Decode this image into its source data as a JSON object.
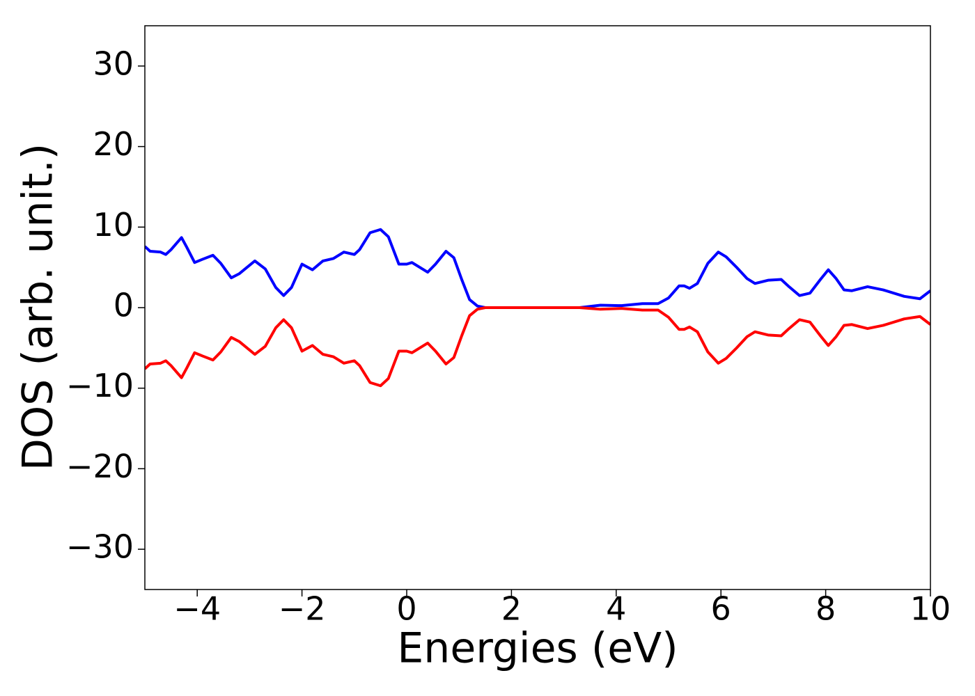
{
  "chart_data": {
    "type": "line",
    "x_label": "Energies (eV)",
    "y_label": "DOS (arb. unit.)",
    "xlim": [
      -5,
      10
    ],
    "xticks": [
      {
        "value": -4,
        "label": "−4"
      },
      {
        "value": -2,
        "label": "−2"
      },
      0,
      2,
      4,
      6,
      8,
      10
    ],
    "ylim": [
      -35,
      35
    ],
    "yticks": [
      {
        "value": -30,
        "label": "−30"
      },
      {
        "value": -20,
        "label": "−20"
      },
      {
        "value": -10,
        "label": "−10"
      },
      0,
      10,
      20,
      30
    ],
    "grid": false,
    "x": [
      -5,
      -4.9,
      -4.7,
      -4.6,
      -4.5,
      -4.3,
      -4.2,
      -4.05,
      -3.9,
      -3.7,
      -3.55,
      -3.35,
      -3.2,
      -2.9,
      -2.7,
      -2.5,
      -2.35,
      -2.2,
      -2.0,
      -1.8,
      -1.6,
      -1.4,
      -1.2,
      -1.0,
      -0.9,
      -0.7,
      -0.5,
      -0.35,
      -0.15,
      0.0,
      0.1,
      0.2,
      0.4,
      0.55,
      0.75,
      0.9,
      1.05,
      1.2,
      1.35,
      1.5,
      3.3,
      3.7,
      4.1,
      4.5,
      4.8,
      5.0,
      5.2,
      5.3,
      5.4,
      5.55,
      5.75,
      5.95,
      6.1,
      6.3,
      6.5,
      6.65,
      6.9,
      7.15,
      7.3,
      7.5,
      7.7,
      7.9,
      8.05,
      8.2,
      8.35,
      8.5,
      8.8,
      9.1,
      9.5,
      9.8,
      10
    ],
    "series": [
      {
        "color": "#0000ff",
        "values": [
          7.6,
          7.0,
          6.9,
          6.6,
          7.2,
          8.7,
          7.5,
          5.6,
          6.0,
          6.5,
          5.5,
          3.7,
          4.2,
          5.8,
          4.8,
          2.5,
          1.5,
          2.5,
          5.4,
          4.7,
          5.8,
          6.1,
          6.9,
          6.6,
          7.2,
          9.3,
          9.7,
          8.8,
          5.4,
          5.4,
          5.6,
          5.2,
          4.4,
          5.4,
          7.0,
          6.2,
          3.5,
          1.0,
          0.2,
          0,
          0,
          0.3,
          0.25,
          0.5,
          0.5,
          1.2,
          2.7,
          2.7,
          2.4,
          3.0,
          5.5,
          6.9,
          6.3,
          5.0,
          3.6,
          3.0,
          3.4,
          3.5,
          2.6,
          1.5,
          1.8,
          3.5,
          4.7,
          3.6,
          2.2,
          2.1,
          2.6,
          2.2,
          1.4,
          1.1,
          2.1
        ]
      },
      {
        "color": "#ff0000",
        "values": [
          -7.6,
          -7.0,
          -6.9,
          -6.6,
          -7.2,
          -8.7,
          -7.5,
          -5.6,
          -6.0,
          -6.5,
          -5.5,
          -3.7,
          -4.2,
          -5.8,
          -4.8,
          -2.5,
          -1.5,
          -2.5,
          -5.4,
          -4.7,
          -5.8,
          -6.1,
          -6.9,
          -6.6,
          -7.2,
          -9.3,
          -9.7,
          -8.8,
          -5.4,
          -5.4,
          -5.6,
          -5.2,
          -4.4,
          -5.4,
          -7.0,
          -6.2,
          -3.5,
          -1.0,
          -0.2,
          0,
          0,
          -0.2,
          -0.1,
          -0.3,
          -0.3,
          -1.2,
          -2.7,
          -2.7,
          -2.4,
          -3.0,
          -5.5,
          -6.9,
          -6.3,
          -5.0,
          -3.6,
          -3.0,
          -3.4,
          -3.5,
          -2.6,
          -1.5,
          -1.8,
          -3.5,
          -4.7,
          -3.6,
          -2.2,
          -2.1,
          -2.6,
          -2.2,
          -1.4,
          -1.1,
          -2.1
        ]
      }
    ]
  }
}
